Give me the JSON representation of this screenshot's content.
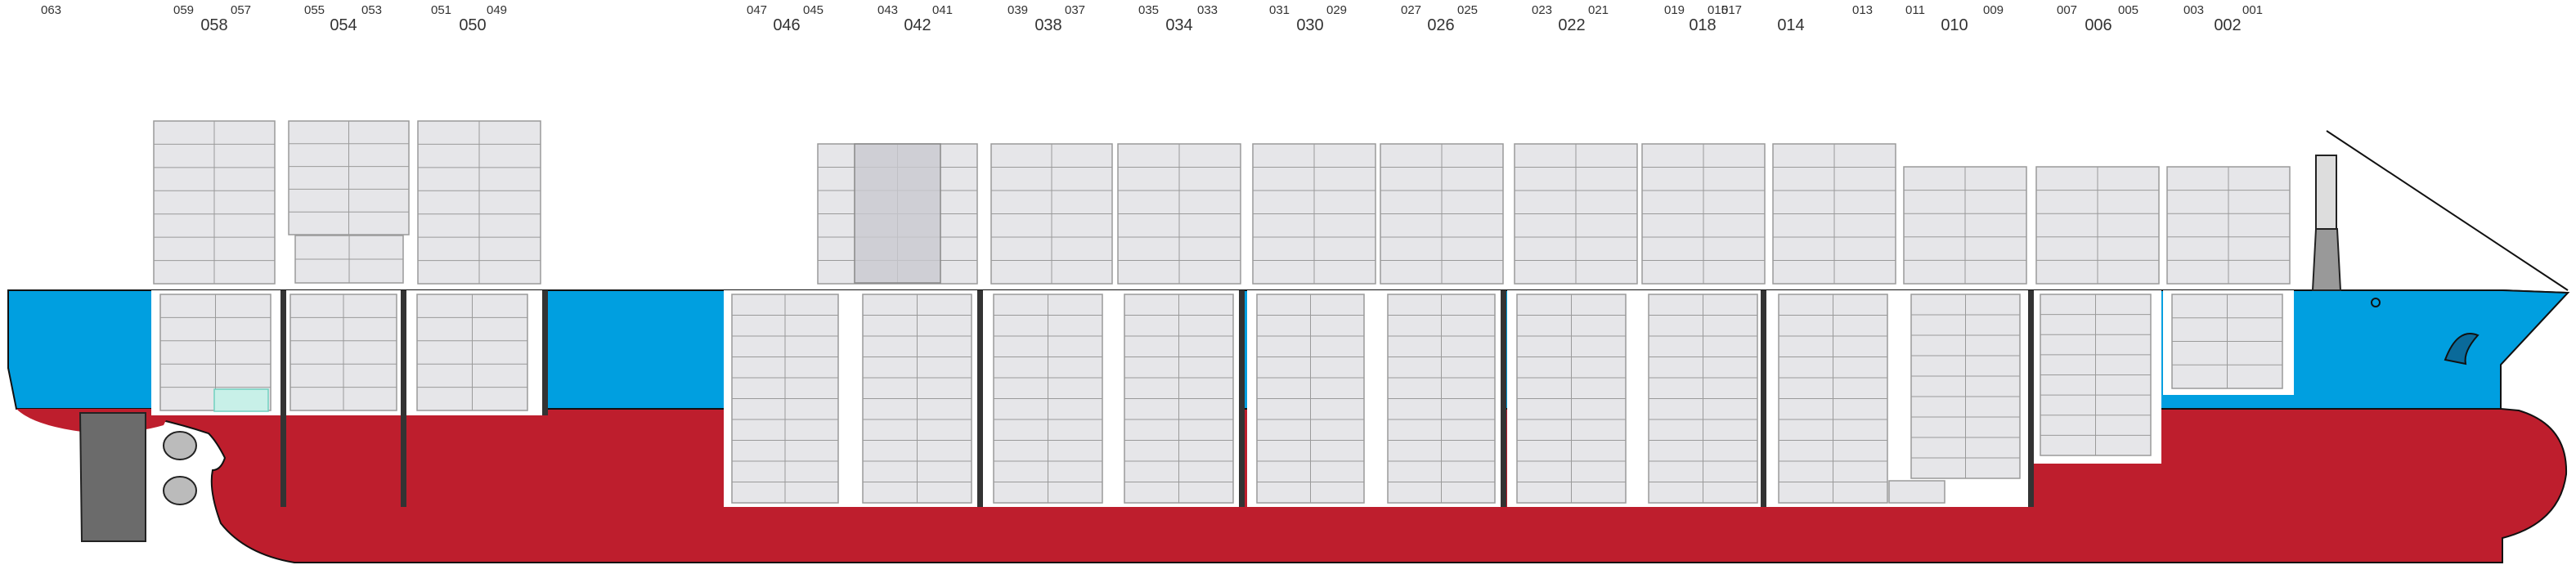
{
  "colors": {
    "hull_red": "#be1e2d",
    "hull_blue": "#009fe0",
    "container": "#e6e6e9",
    "container_stroke": "#9a9a9a",
    "hold_white": "#ffffff",
    "bulkhead": "#333333"
  },
  "bays": {
    "big": [
      "058",
      "054",
      "050",
      "046",
      "042",
      "038",
      "034",
      "030",
      "026",
      "022",
      "018",
      "014",
      "010",
      "006",
      "002"
    ],
    "small": [
      "063",
      "059",
      "057",
      "055",
      "053",
      "051",
      "049",
      "047",
      "045",
      "043",
      "041",
      "039",
      "037",
      "035",
      "033",
      "031",
      "029",
      "027",
      "025",
      "023",
      "021",
      "019",
      "015",
      "017",
      "013",
      "011",
      "009",
      "007",
      "005",
      "003",
      "001"
    ]
  },
  "ship_icons": [
    "propeller-icon",
    "rudder-icon",
    "crane-icon",
    "bow-thruster-icon",
    "star-icon"
  ]
}
